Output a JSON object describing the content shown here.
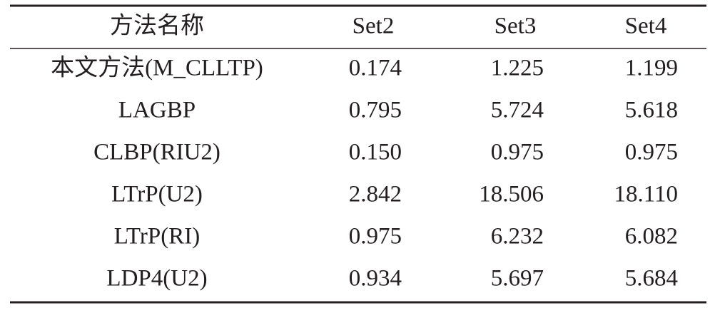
{
  "table": {
    "header": [
      "方法名称",
      "Set2",
      "Set3",
      "Set4"
    ],
    "rows": [
      [
        "本文方法(M_CLLTP)",
        "0.174",
        "1.225",
        "1.199"
      ],
      [
        "LAGBP",
        "0.795",
        "5.724",
        "5.618"
      ],
      [
        "CLBP(RIU2)",
        "0.150",
        "0.975",
        "0.975"
      ],
      [
        "LTrP(U2)",
        "2.842",
        "18.506",
        "18.110"
      ],
      [
        "LTrP(RI)",
        "0.975",
        "6.232",
        "6.082"
      ],
      [
        "LDP4(U2)",
        "0.934",
        "5.697",
        "5.684"
      ]
    ]
  }
}
